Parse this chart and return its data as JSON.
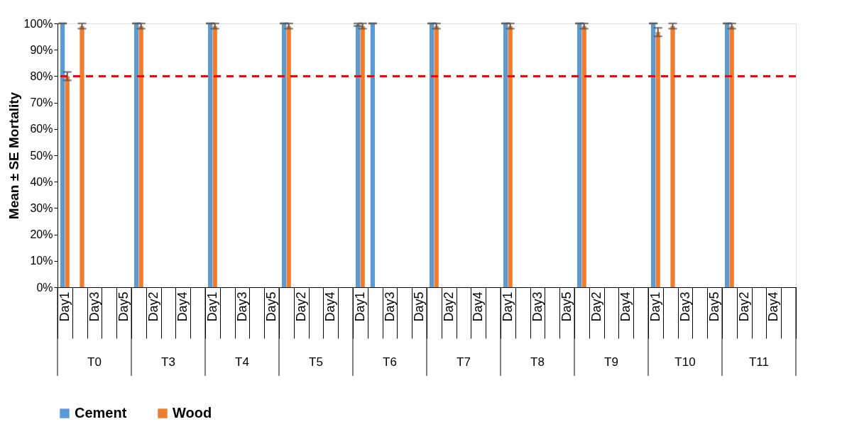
{
  "chart_data": {
    "type": "bar",
    "ylabel": "Mean ± SE Mortality",
    "categories": [
      "Day1",
      null,
      "Day3",
      null,
      "Day5",
      null,
      "Day2",
      null,
      "Day4",
      null,
      "Day1",
      null,
      "Day3",
      null,
      "Day5",
      null,
      "Day2",
      null,
      "Day4",
      null,
      "Day1",
      null,
      "Day3",
      null,
      "Day5",
      null,
      "Day2",
      null,
      "Day4",
      null,
      "Day1",
      null,
      "Day3",
      null,
      "Day5",
      null,
      "Day2",
      null,
      "Day4",
      null,
      "Day1",
      null,
      "Day3",
      null,
      "Day5",
      null,
      "Day2",
      null,
      "Day4",
      null
    ],
    "annotations": [
      "T0",
      "T3",
      "T4",
      "T5",
      "T6",
      "T7",
      "T8",
      "T9",
      "T10",
      "T11"
    ],
    "series": [
      {
        "name": "Cement",
        "color": "#5b9bd5",
        "values": [
          100,
          null,
          null,
          null,
          null,
          100,
          null,
          null,
          null,
          null,
          100,
          null,
          null,
          null,
          null,
          100,
          null,
          null,
          null,
          null,
          99.5,
          100,
          null,
          null,
          null,
          100,
          null,
          null,
          null,
          null,
          100,
          null,
          null,
          null,
          null,
          100,
          null,
          null,
          null,
          null,
          100,
          null,
          null,
          null,
          null,
          100,
          null,
          null,
          null,
          null
        ],
        "errors": [
          0,
          null,
          null,
          null,
          null,
          0,
          null,
          null,
          null,
          null,
          0,
          null,
          null,
          null,
          null,
          0,
          null,
          null,
          null,
          null,
          0.5,
          0,
          null,
          null,
          null,
          0,
          null,
          null,
          null,
          null,
          0,
          null,
          null,
          null,
          null,
          0,
          null,
          null,
          null,
          null,
          0,
          null,
          null,
          null,
          null,
          0,
          null,
          null,
          null,
          null
        ]
      },
      {
        "name": "Wood",
        "color": "#ed7d31",
        "values": [
          80,
          99,
          null,
          null,
          null,
          99,
          null,
          null,
          null,
          null,
          99,
          null,
          null,
          null,
          null,
          99,
          null,
          null,
          null,
          null,
          99,
          null,
          null,
          null,
          null,
          99,
          null,
          null,
          null,
          null,
          99,
          null,
          null,
          null,
          null,
          99,
          null,
          null,
          null,
          null,
          96.7,
          99,
          null,
          null,
          null,
          99,
          null,
          null,
          null,
          null
        ],
        "errors": [
          1.6,
          1,
          null,
          null,
          null,
          1,
          null,
          null,
          null,
          null,
          1,
          null,
          null,
          null,
          null,
          1,
          null,
          null,
          null,
          null,
          1,
          null,
          null,
          null,
          null,
          1,
          null,
          null,
          null,
          null,
          1,
          null,
          null,
          null,
          null,
          1,
          null,
          null,
          null,
          null,
          1.6,
          1,
          null,
          null,
          null,
          1,
          null,
          null,
          null,
          null
        ]
      }
    ],
    "ylim": [
      0,
      100
    ],
    "yticks": [
      {
        "value": 0,
        "label": "0%"
      },
      {
        "value": 10,
        "label": "10%"
      },
      {
        "value": 20,
        "label": "20%"
      },
      {
        "value": 30,
        "label": "30%"
      },
      {
        "value": 40,
        "label": "40%"
      },
      {
        "value": 50,
        "label": "50%"
      },
      {
        "value": 60,
        "label": "60%"
      },
      {
        "value": 70,
        "label": "70%"
      },
      {
        "value": 80,
        "label": "80%"
      },
      {
        "value": 90,
        "label": "90%"
      },
      {
        "value": 100,
        "label": "100%"
      }
    ],
    "ref_lines": [
      {
        "axis": "y",
        "value": 80,
        "color": "#ff0000",
        "line_style": "dashed"
      }
    ],
    "grid": false,
    "legend": "bottom"
  }
}
